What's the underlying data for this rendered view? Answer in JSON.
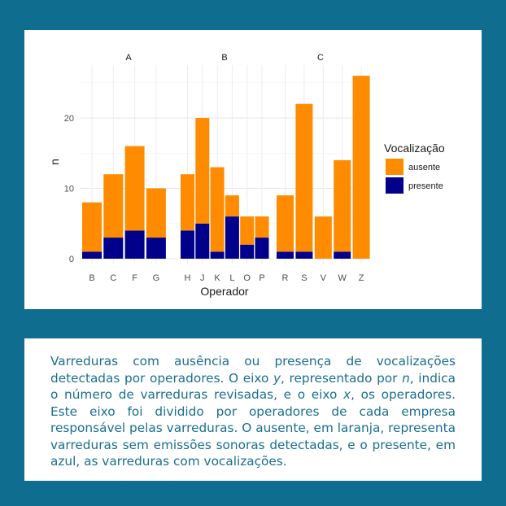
{
  "chart_data": {
    "type": "bar",
    "stacked": true,
    "ylabel": "n",
    "xlabel": "Operador",
    "ylim": [
      0,
      27
    ],
    "yticks": [
      0,
      10,
      20
    ],
    "grid": true,
    "legend": {
      "title": "Vocalização",
      "placement": "right",
      "items": [
        {
          "name": "ausente",
          "color": "#ff8c00"
        },
        {
          "name": "presente",
          "color": "#00008b"
        }
      ]
    },
    "facets": [
      {
        "label": "A",
        "categories": [
          "B",
          "C",
          "F",
          "G"
        ],
        "series": [
          {
            "name": "presente",
            "values": [
              1,
              3,
              4,
              3
            ]
          },
          {
            "name": "ausente",
            "values": [
              7,
              9,
              12,
              7
            ]
          }
        ]
      },
      {
        "label": "B",
        "categories": [
          "H",
          "J",
          "K",
          "L",
          "O",
          "P"
        ],
        "series": [
          {
            "name": "presente",
            "values": [
              4,
              5,
              1,
              6,
              2,
              3
            ]
          },
          {
            "name": "ausente",
            "values": [
              8,
              15,
              12,
              3,
              4,
              3
            ]
          }
        ]
      },
      {
        "label": "C",
        "categories": [
          "R",
          "S",
          "V",
          "W",
          "Z"
        ],
        "series": [
          {
            "name": "presente",
            "values": [
              1,
              1,
              0,
              1,
              0
            ]
          },
          {
            "name": "ausente",
            "values": [
              8,
              21,
              6,
              13,
              26
            ]
          }
        ]
      }
    ]
  },
  "caption": {
    "part1": "Varreduras com ausência ou presença de vocalizações detectadas por operadores. O eixo ",
    "y_symbol": "y",
    "part2": ", representado por ",
    "n_symbol": "n",
    "part3": ", indica o número de varreduras revisadas, e o eixo ",
    "x_symbol": "x",
    "part4": ", os operadores. Este eixo foi dividido por operadores de cada empresa responsável pelas varreduras. O ausente, em laranja, representa varreduras sem emissões sonoras detectadas, e o presente, em azul, as varreduras com vocalizações."
  }
}
